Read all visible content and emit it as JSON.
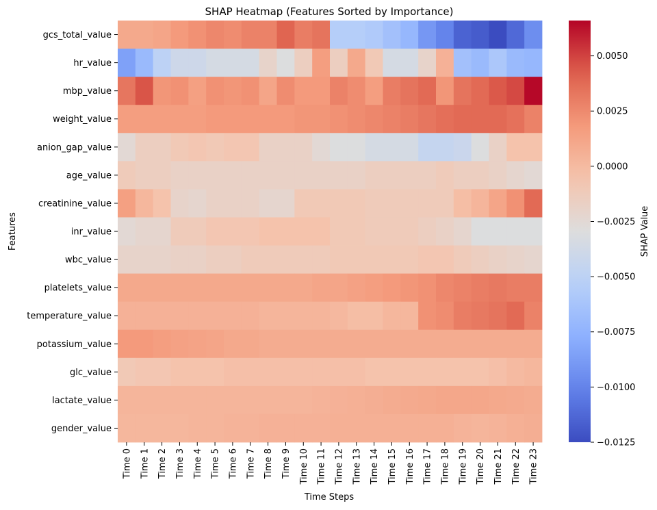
{
  "chart_data": {
    "type": "heatmap",
    "title": "SHAP Heatmap (Features Sorted by Importance)",
    "xlabel": "Time Steps",
    "ylabel": "Features",
    "colorbar_label": "SHAP Value",
    "colormap": "coolwarm",
    "value_range": [
      -0.0125,
      0.0066
    ],
    "colorbar_ticks": [
      0.005,
      0.0025,
      0.0,
      -0.0025,
      -0.005,
      -0.0075,
      -0.01,
      -0.0125
    ],
    "colorbar_tick_labels": [
      "0.0050",
      "0.0025",
      "0.0000",
      "−0.0025",
      "−0.0050",
      "−0.0075",
      "−0.0100",
      "−0.0125"
    ],
    "x_categories": [
      "Time 0",
      "Time 1",
      "Time 2",
      "Time 3",
      "Time 4",
      "Time 5",
      "Time 6",
      "Time 7",
      "Time 8",
      "Time 9",
      "Time 10",
      "Time 11",
      "Time 12",
      "Time 13",
      "Time 14",
      "Time 15",
      "Time 16",
      "Time 17",
      "Time 18",
      "Time 19",
      "Time 20",
      "Time 21",
      "Time 22",
      "Time 23"
    ],
    "y_categories": [
      "gcs_total_value",
      "hr_value",
      "mbp_value",
      "weight_value",
      "anion_gap_value",
      "age_value",
      "creatinine_value",
      "inr_value",
      "wbc_value",
      "platelets_value",
      "temperature_value",
      "potassium_value",
      "glc_value",
      "lactate_value",
      "gender_value"
    ],
    "values": [
      [
        0.001,
        0.001,
        0.0012,
        0.0018,
        0.0022,
        0.0026,
        0.0024,
        0.0028,
        0.0028,
        0.004,
        0.003,
        0.0034,
        -0.0055,
        -0.0055,
        -0.0058,
        -0.0065,
        -0.0072,
        -0.009,
        -0.01,
        -0.0115,
        -0.0118,
        -0.0125,
        -0.0112,
        -0.0095
      ],
      [
        -0.0085,
        -0.007,
        -0.005,
        -0.004,
        -0.004,
        -0.0035,
        -0.0035,
        -0.0035,
        -0.002,
        -0.003,
        -0.0015,
        0.0016,
        -0.0015,
        0.001,
        -0.001,
        -0.0035,
        -0.0035,
        -0.002,
        0.0005,
        -0.0065,
        -0.007,
        -0.006,
        -0.007,
        -0.0072
      ],
      [
        0.0033,
        0.0045,
        0.002,
        0.0022,
        0.0015,
        0.0022,
        0.002,
        0.0022,
        0.0012,
        0.0024,
        0.0018,
        0.0018,
        0.0028,
        0.0024,
        0.0016,
        0.003,
        0.0034,
        0.0038,
        0.002,
        0.0034,
        0.0038,
        0.0044,
        0.0048,
        0.0065
      ],
      [
        0.0016,
        0.0016,
        0.0016,
        0.0016,
        0.0016,
        0.0018,
        0.0018,
        0.0018,
        0.0018,
        0.0018,
        0.002,
        0.002,
        0.0022,
        0.0024,
        0.0026,
        0.0028,
        0.003,
        0.0033,
        0.0036,
        0.0038,
        0.0038,
        0.0038,
        0.0035,
        0.0028
      ],
      [
        -0.0025,
        -0.0015,
        -0.0015,
        -0.001,
        -0.0008,
        -0.001,
        -0.0008,
        -0.0008,
        -0.0018,
        -0.0018,
        -0.0018,
        -0.0025,
        -0.003,
        -0.003,
        -0.0035,
        -0.0035,
        -0.0035,
        -0.0045,
        -0.0045,
        -0.0042,
        -0.003,
        -0.0018,
        -0.0005,
        -0.0005
      ],
      [
        -0.0012,
        -0.0015,
        -0.0015,
        -0.0018,
        -0.0018,
        -0.0018,
        -0.0018,
        -0.0018,
        -0.0018,
        -0.0018,
        -0.0018,
        -0.0018,
        -0.0018,
        -0.0018,
        -0.0015,
        -0.0015,
        -0.0015,
        -0.0015,
        -0.0012,
        -0.0015,
        -0.0015,
        -0.0018,
        -0.0022,
        -0.0025
      ],
      [
        0.0015,
        0.0002,
        -0.0005,
        -0.002,
        -0.0022,
        -0.0018,
        -0.0018,
        -0.0018,
        -0.0022,
        -0.0022,
        -0.001,
        -0.001,
        -0.001,
        -0.001,
        -0.0012,
        -0.0012,
        -0.0012,
        -0.0012,
        -0.0012,
        -0.0002,
        0.0003,
        0.0012,
        0.0022,
        0.0038
      ],
      [
        -0.0025,
        -0.0022,
        -0.0022,
        -0.0012,
        -0.0012,
        -0.0008,
        -0.0008,
        -0.0008,
        -0.0005,
        -0.0005,
        -0.0005,
        -0.0005,
        -0.001,
        -0.001,
        -0.0012,
        -0.0012,
        -0.0012,
        -0.0015,
        -0.0018,
        -0.0022,
        -0.003,
        -0.003,
        -0.003,
        -0.003
      ],
      [
        -0.002,
        -0.002,
        -0.002,
        -0.0018,
        -0.0018,
        -0.0015,
        -0.0015,
        -0.0012,
        -0.0012,
        -0.0012,
        -0.0012,
        -0.0012,
        -0.001,
        -0.001,
        -0.001,
        -0.001,
        -0.001,
        -0.0008,
        -0.0008,
        -0.0012,
        -0.0015,
        -0.0018,
        -0.002,
        -0.0022
      ],
      [
        0.001,
        0.001,
        0.001,
        0.001,
        0.001,
        0.001,
        0.001,
        0.001,
        0.001,
        0.001,
        0.001,
        0.0012,
        0.0012,
        0.0014,
        0.0016,
        0.0018,
        0.002,
        0.0022,
        0.0026,
        0.0028,
        0.003,
        0.0032,
        0.003,
        0.003
      ],
      [
        0.0005,
        0.0005,
        0.0005,
        0.0005,
        0.0005,
        0.0005,
        0.0005,
        0.0005,
        0.0003,
        0.0003,
        0.0003,
        0.0003,
        0.0001,
        -0.0002,
        -0.0002,
        0.0002,
        0.0002,
        0.0022,
        0.0024,
        0.003,
        0.0032,
        0.0034,
        0.0038,
        0.0028
      ],
      [
        0.0018,
        0.0018,
        0.0016,
        0.0014,
        0.0013,
        0.0012,
        0.001,
        0.001,
        0.0008,
        0.0008,
        0.0008,
        0.0008,
        0.0008,
        0.0008,
        0.0008,
        0.0008,
        0.0008,
        0.0008,
        0.0008,
        0.0008,
        0.0008,
        0.0008,
        0.0008,
        0.0008
      ],
      [
        -0.001,
        -0.0008,
        -0.0008,
        -0.0005,
        -0.0005,
        -0.0005,
        -0.0003,
        -0.0003,
        -0.0003,
        -0.0003,
        -0.0003,
        -0.0003,
        -0.0003,
        -0.0003,
        -0.0005,
        -0.0005,
        -0.0005,
        -0.0005,
        -0.0005,
        -0.0005,
        -0.0005,
        -0.0003,
        0.0,
        0.0002
      ],
      [
        0.0003,
        0.0003,
        0.0003,
        0.0003,
        0.0003,
        0.0003,
        0.0003,
        0.0003,
        0.0003,
        0.0003,
        0.0003,
        0.0004,
        0.0005,
        0.0006,
        0.0007,
        0.0008,
        0.0009,
        0.001,
        0.0011,
        0.0011,
        0.0011,
        0.001,
        0.0009,
        0.0008
      ],
      [
        0.0002,
        0.0002,
        0.0002,
        0.0002,
        0.0003,
        0.0003,
        0.0004,
        0.0004,
        0.0005,
        0.0005,
        0.0005,
        0.0005,
        0.0006,
        0.0006,
        0.0006,
        0.0006,
        0.0006,
        0.0006,
        0.0006,
        0.0004,
        0.0003,
        0.0004,
        0.0006,
        0.0007
      ]
    ]
  }
}
